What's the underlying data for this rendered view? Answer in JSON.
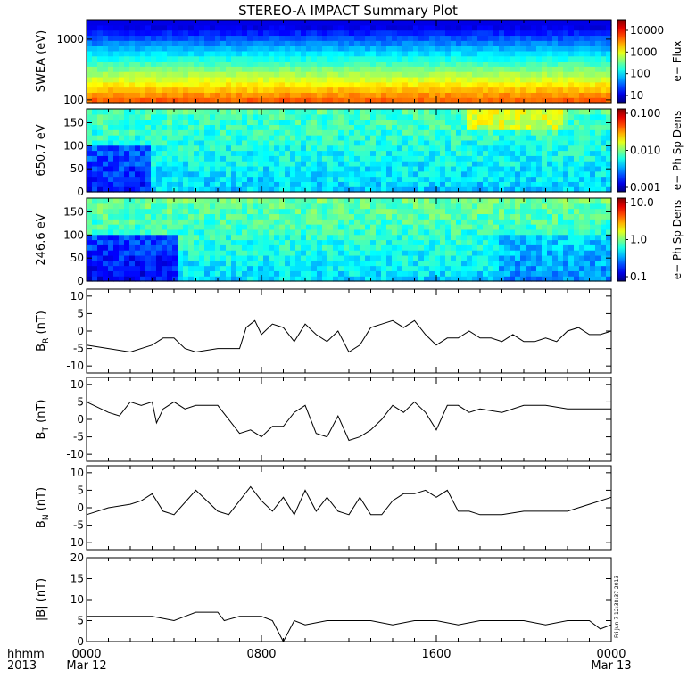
{
  "title": "STEREO-A IMPACT Summary Plot",
  "footer": {
    "row_label_1": "hhmm",
    "row_label_2": "2013",
    "ticks": [
      "0000",
      "0800",
      "1600",
      "0000"
    ],
    "dates": [
      "Mar 12",
      "Mar 13"
    ]
  },
  "stamp": "Fri Jun  7 12:38:37 2013",
  "chart_data": [
    {
      "type": "heatmap",
      "ylabel": "SWEA (eV)",
      "y_scale": "log",
      "yticks": [
        "1000",
        "100"
      ],
      "colorbar": {
        "label": "e− Flux",
        "scale": "log",
        "ticks": [
          "10000",
          "1000",
          "100",
          "10"
        ]
      },
      "description_values": "energy spectrogram; low energies (100 eV) yellow/orange, high energies (~2000 eV) blue/purple"
    },
    {
      "type": "heatmap",
      "ylabel": "650.7 eV",
      "ylim": [
        0,
        180
      ],
      "yticks": [
        "150",
        "100",
        "50",
        "0"
      ],
      "colorbar": {
        "label": "e− Ph Sp Dens",
        "scale": "log",
        "ticks": [
          "0.100",
          "0.010",
          "0.001"
        ]
      }
    },
    {
      "type": "heatmap",
      "ylabel": "246.6 eV",
      "ylim": [
        0,
        180
      ],
      "yticks": [
        "150",
        "100",
        "50",
        "0"
      ],
      "colorbar": {
        "label": "e− Ph Sp Dens",
        "scale": "log",
        "ticks": [
          "10.0",
          "1.0",
          "0.1"
        ]
      }
    },
    {
      "type": "line",
      "ylabel_main": "B",
      "ylabel_sub": "R",
      "ylabel_unit": " (nT)",
      "ylim": [
        -12,
        12
      ],
      "yticks": [
        "10",
        "5",
        "0",
        "-5",
        "-10"
      ],
      "x": [
        0,
        1,
        2,
        3,
        3.5,
        4,
        4.5,
        5,
        6,
        7,
        7.3,
        7.7,
        8,
        8.5,
        9,
        9.5,
        10,
        10.5,
        11,
        11.5,
        12,
        12.5,
        13,
        13.5,
        14,
        14.5,
        15,
        15.5,
        16,
        16.5,
        17,
        17.5,
        18,
        18.5,
        19,
        19.5,
        20,
        20.5,
        21,
        21.5,
        22,
        22.5,
        23,
        23.5,
        24
      ],
      "values": [
        -4,
        -5,
        -6,
        -4,
        -2,
        -2,
        -5,
        -6,
        -5,
        -5,
        1,
        3,
        -1,
        2,
        1,
        -3,
        2,
        -1,
        -3,
        0,
        -6,
        -4,
        1,
        2,
        3,
        1,
        3,
        -1,
        -4,
        -2,
        -2,
        0,
        -2,
        -2,
        -3,
        -1,
        -3,
        -3,
        -2,
        -3,
        0,
        1,
        -1,
        -1,
        0
      ]
    },
    {
      "type": "line",
      "ylabel_main": "B",
      "ylabel_sub": "T",
      "ylabel_unit": " (nT)",
      "ylim": [
        -12,
        12
      ],
      "yticks": [
        "10",
        "5",
        "0",
        "-5",
        "-10"
      ],
      "x": [
        0,
        1,
        1.5,
        2,
        2.5,
        3,
        3.2,
        3.5,
        4,
        4.5,
        5,
        6,
        7,
        7.5,
        8,
        8.5,
        9,
        9.5,
        10,
        10.5,
        11,
        11.5,
        12,
        12.5,
        13,
        13.5,
        14,
        14.5,
        15,
        15.5,
        16,
        16.5,
        17,
        17.5,
        18,
        19,
        20,
        21,
        22,
        23,
        24
      ],
      "values": [
        5,
        2,
        1,
        5,
        4,
        5,
        -1,
        3,
        5,
        3,
        4,
        4,
        -4,
        -3,
        -5,
        -2,
        -2,
        2,
        4,
        -4,
        -5,
        1,
        -6,
        -5,
        -3,
        0,
        4,
        2,
        5,
        2,
        -3,
        4,
        4,
        2,
        3,
        2,
        4,
        4,
        3,
        3,
        3
      ]
    },
    {
      "type": "line",
      "ylabel_main": "B",
      "ylabel_sub": "N",
      "ylabel_unit": " (nT)",
      "ylim": [
        -12,
        12
      ],
      "yticks": [
        "10",
        "5",
        "0",
        "-5",
        "-10"
      ],
      "x": [
        0,
        1,
        2,
        2.5,
        3,
        3.5,
        4,
        5,
        6,
        6.5,
        7,
        7.5,
        8,
        8.5,
        9,
        9.5,
        10,
        10.5,
        11,
        11.5,
        12,
        12.5,
        13,
        13.5,
        14,
        14.5,
        15,
        15.5,
        16,
        16.5,
        17,
        17.5,
        18,
        19,
        20,
        21,
        22,
        23,
        24
      ],
      "values": [
        -2,
        0,
        1,
        2,
        4,
        -1,
        -2,
        5,
        -1,
        -2,
        2,
        6,
        2,
        -1,
        3,
        -2,
        5,
        -1,
        3,
        -1,
        -2,
        3,
        -2,
        -2,
        2,
        4,
        4,
        5,
        3,
        5,
        -1,
        -1,
        -2,
        -2,
        -1,
        -1,
        -1,
        1,
        3
      ]
    },
    {
      "type": "line",
      "ylabel_main": "|B|",
      "ylabel_unit": " (nT)",
      "ylim": [
        0,
        20
      ],
      "yticks": [
        "20",
        "15",
        "10",
        "5",
        "0"
      ],
      "x": [
        0,
        1,
        2,
        3,
        4,
        4.5,
        5,
        6,
        6.3,
        7,
        8,
        8.5,
        9,
        9.5,
        10,
        11,
        12,
        13,
        14,
        15,
        16,
        17,
        18,
        19,
        20,
        21,
        22,
        23,
        23.5,
        24
      ],
      "values": [
        6,
        6,
        6,
        6,
        5,
        6,
        7,
        7,
        5,
        6,
        6,
        5,
        0,
        5,
        4,
        5,
        5,
        5,
        4,
        5,
        5,
        4,
        5,
        5,
        5,
        4,
        5,
        5,
        3,
        4
      ]
    }
  ]
}
